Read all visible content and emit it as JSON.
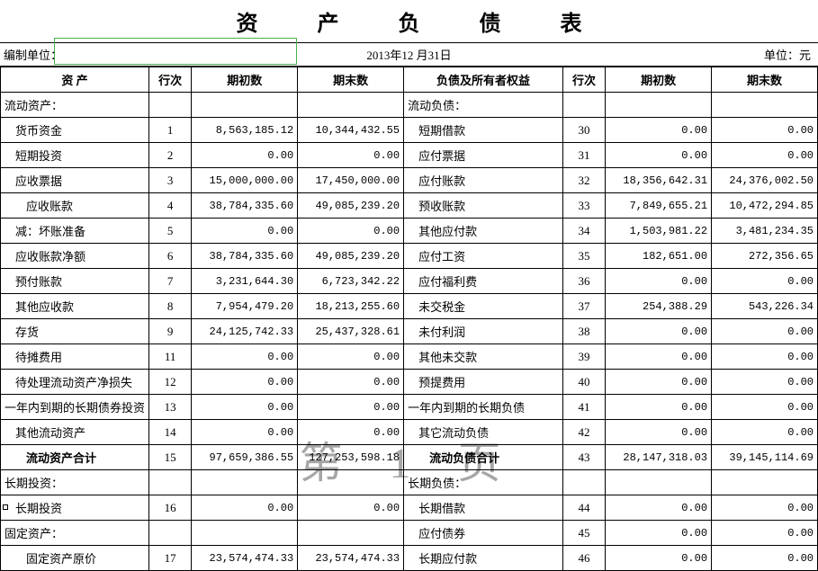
{
  "title": "资 产 负 债 表",
  "meta": {
    "left": "编制单位：",
    "center": "2013年12 月31日",
    "right": "单位：元"
  },
  "headers": {
    "asset": "资  产",
    "line": "行次",
    "begin": "期初数",
    "end": "期末数",
    "liab": "负债及所有者权益",
    "line2": "行次",
    "begin2": "期初数",
    "end2": "期末数"
  },
  "watermark": "第  1  页",
  "rows": [
    {
      "a": "流动资产：",
      "al": "",
      "ln": "",
      "b": "",
      "e": "",
      "l": "流动负债：",
      "ll": "",
      "ln2": "",
      "b2": "",
      "e2": ""
    },
    {
      "a": "货币资金",
      "al": "indent1",
      "ln": "1",
      "b": "8,563,185.12",
      "e": "10,344,432.55",
      "l": "短期借款",
      "ll": "indent1",
      "ln2": "30",
      "b2": "0.00",
      "e2": "0.00"
    },
    {
      "a": "短期投资",
      "al": "indent1",
      "ln": "2",
      "b": "0.00",
      "e": "0.00",
      "l": "应付票据",
      "ll": "indent1",
      "ln2": "31",
      "b2": "0.00",
      "e2": "0.00"
    },
    {
      "a": "应收票据",
      "al": "indent1",
      "ln": "3",
      "b": "15,000,000.00",
      "e": "17,450,000.00",
      "l": "应付账款",
      "ll": "indent1",
      "ln2": "32",
      "b2": "18,356,642.31",
      "e2": "24,376,002.50"
    },
    {
      "a": "应收账款",
      "al": "indent2",
      "ln": "4",
      "b": "38,784,335.60",
      "e": "49,085,239.20",
      "l": "预收账款",
      "ll": "indent1",
      "ln2": "33",
      "b2": "7,849,655.21",
      "e2": "10,472,294.85"
    },
    {
      "a": "减：坏账准备",
      "al": "indent1",
      "ln": "5",
      "b": "0.00",
      "e": "0.00",
      "l": "其他应付款",
      "ll": "indent1",
      "ln2": "34",
      "b2": "1,503,981.22",
      "e2": "3,481,234.35"
    },
    {
      "a": "应收账款净额",
      "al": "indent1",
      "ln": "6",
      "b": "38,784,335.60",
      "e": "49,085,239.20",
      "l": "应付工资",
      "ll": "indent1",
      "ln2": "35",
      "b2": "182,651.00",
      "e2": "272,356.65"
    },
    {
      "a": "预付账款",
      "al": "indent1",
      "ln": "7",
      "b": "3,231,644.30",
      "e": "6,723,342.22",
      "l": "应付福利费",
      "ll": "indent1",
      "ln2": "36",
      "b2": "0.00",
      "e2": "0.00"
    },
    {
      "a": "其他应收款",
      "al": "indent1",
      "ln": "8",
      "b": "7,954,479.20",
      "e": "18,213,255.60",
      "l": "未交税金",
      "ll": "indent1",
      "ln2": "37",
      "b2": "254,388.29",
      "e2": "543,226.34"
    },
    {
      "a": "存货",
      "al": "indent1",
      "ln": "9",
      "b": "24,125,742.33",
      "e": "25,437,328.61",
      "l": "未付利润",
      "ll": "indent1",
      "ln2": "38",
      "b2": "0.00",
      "e2": "0.00"
    },
    {
      "a": "待摊费用",
      "al": "indent1",
      "ln": "11",
      "b": "0.00",
      "e": "0.00",
      "l": "其他未交款",
      "ll": "indent1",
      "ln2": "39",
      "b2": "0.00",
      "e2": "0.00"
    },
    {
      "a": "待处理流动资产净损失",
      "al": "indent1",
      "ln": "12",
      "b": "0.00",
      "e": "0.00",
      "l": "预提费用",
      "ll": "indent1",
      "ln2": "40",
      "b2": "0.00",
      "e2": "0.00"
    },
    {
      "a": "一年内到期的长期债券投资",
      "al": "",
      "ln": "13",
      "b": "0.00",
      "e": "0.00",
      "l": "一年内到期的长期负债",
      "ll": "",
      "ln2": "41",
      "b2": "0.00",
      "e2": "0.00"
    },
    {
      "a": "其他流动资产",
      "al": "indent1",
      "ln": "14",
      "b": "0.00",
      "e": "0.00",
      "l": "其它流动负债",
      "ll": "indent1",
      "ln2": "42",
      "b2": "0.00",
      "e2": "0.00"
    },
    {
      "a": "流动资产合计",
      "al": "indent2 bold",
      "ln": "15",
      "b": "97,659,386.55",
      "e": "127,253,598.18",
      "l": "流动负债合计",
      "ll": "indent2 bold",
      "ln2": "43",
      "b2": "28,147,318.03",
      "e2": "39,145,114.69"
    },
    {
      "a": "长期投资：",
      "al": "",
      "ln": "",
      "b": "",
      "e": "",
      "l": "长期负债：",
      "ll": "",
      "ln2": "",
      "b2": "",
      "e2": ""
    },
    {
      "a": "长期投资",
      "al": "indent1",
      "ln": "16",
      "b": "0.00",
      "e": "0.00",
      "l": "长期借款",
      "ll": "indent1",
      "ln2": "44",
      "b2": "0.00",
      "e2": "0.00",
      "marker": true
    },
    {
      "a": "固定资产：",
      "al": "",
      "ln": "",
      "b": "",
      "e": "",
      "l": "应付债券",
      "ll": "indent1",
      "ln2": "45",
      "b2": "0.00",
      "e2": "0.00"
    },
    {
      "a": "固定资产原价",
      "al": "indent2",
      "ln": "17",
      "b": "23,574,474.33",
      "e": "23,574,474.33",
      "l": "长期应付款",
      "ll": "indent1",
      "ln2": "46",
      "b2": "0.00",
      "e2": "0.00"
    }
  ]
}
